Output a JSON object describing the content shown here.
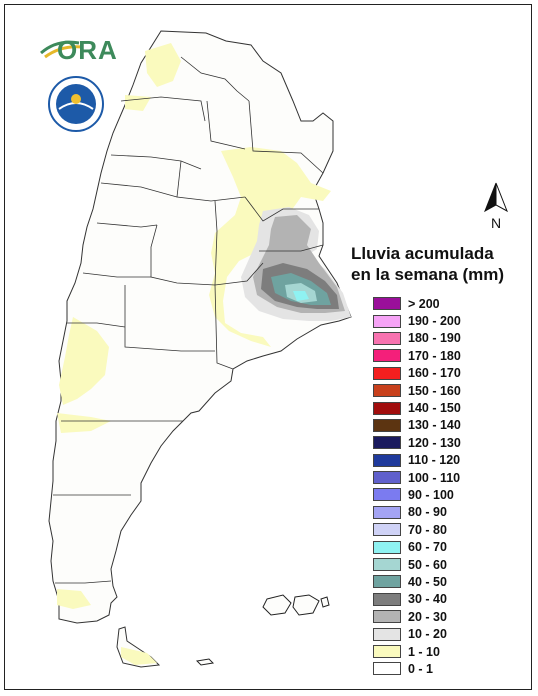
{
  "logo": {
    "text": "ORA"
  },
  "north_arrow": {
    "label": "N"
  },
  "legend": {
    "title_line1": "Lluvia acumulada",
    "title_line2": "en la semana (mm)",
    "items": [
      {
        "label": "> 200",
        "color": "#9a0f9a"
      },
      {
        "label": "190 - 200",
        "color": "#f6a3f6"
      },
      {
        "label": "180 - 190",
        "color": "#f873b0"
      },
      {
        "label": "170 - 180",
        "color": "#f41f7a"
      },
      {
        "label": "160 - 170",
        "color": "#f41f1f"
      },
      {
        "label": "150 - 160",
        "color": "#c8401c"
      },
      {
        "label": "140 - 150",
        "color": "#a10d0d"
      },
      {
        "label": "130 - 140",
        "color": "#5c3411"
      },
      {
        "label": "120 - 130",
        "color": "#1a1a5e"
      },
      {
        "label": "110 - 120",
        "color": "#1f3a9c"
      },
      {
        "label": "100 - 110",
        "color": "#6060cc"
      },
      {
        "label": "90 - 100",
        "color": "#7b7bf0"
      },
      {
        "label": "80 - 90",
        "color": "#a4a4f4"
      },
      {
        "label": "70 - 80",
        "color": "#cfd2f6"
      },
      {
        "label": "60 - 70",
        "color": "#8ff2f2"
      },
      {
        "label": "50 - 60",
        "color": "#a5d6d2"
      },
      {
        "label": "40 - 50",
        "color": "#6fa3a0"
      },
      {
        "label": "30 - 40",
        "color": "#7d7d7d"
      },
      {
        "label": "20 - 30",
        "color": "#b3b3b3"
      },
      {
        "label": "10 - 20",
        "color": "#e4e4e4"
      },
      {
        "label": "1 - 10",
        "color": "#fafabe"
      },
      {
        "label": "0 - 1",
        "color": "#ffffff"
      }
    ]
  },
  "colors": {
    "land": "#fdfdfb",
    "border": "#333333",
    "ora_green": "#3d8a5b",
    "ora_gold": "#e5b82a",
    "seal_blue": "#1d5aa8"
  }
}
